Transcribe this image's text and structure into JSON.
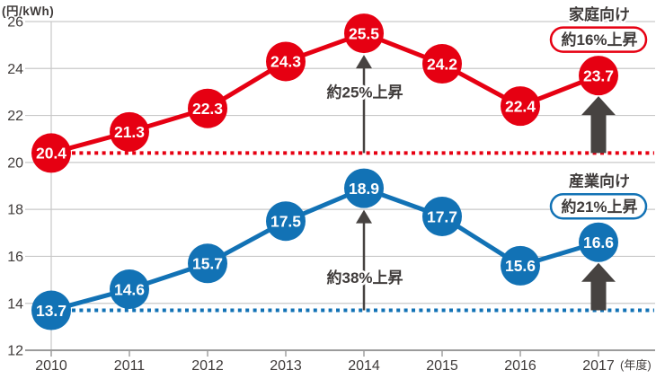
{
  "chart_data": {
    "type": "line",
    "title": "",
    "y_axis_title": "(円/kWh)",
    "x_axis_suffix": "(年度)",
    "x": [
      2010,
      2011,
      2012,
      2013,
      2014,
      2015,
      2016,
      2017
    ],
    "ylim": [
      12,
      26
    ],
    "yticks": [
      12,
      14,
      16,
      18,
      20,
      22,
      24,
      26
    ],
    "grid": true,
    "legend_position": "right-inline",
    "series": [
      {
        "name": "家庭向け",
        "color": "#e60012",
        "values": [
          20.4,
          21.3,
          22.3,
          24.3,
          25.5,
          24.2,
          22.4,
          23.7
        ],
        "baseline": {
          "value": 20.4,
          "style": "dotted"
        },
        "rise_peak": {
          "text": "約25%上昇",
          "at_x": 2014,
          "from": 20.4,
          "to": 25.5,
          "label_at_value": 23.0
        },
        "rise_total": {
          "text": "約16%上昇",
          "at_x": 2017,
          "from": 20.4,
          "to": 23.7
        }
      },
      {
        "name": "産業向け",
        "color": "#1272b5",
        "values": [
          13.7,
          14.6,
          15.7,
          17.5,
          18.9,
          17.7,
          15.6,
          16.6
        ],
        "baseline": {
          "value": 13.7,
          "style": "dotted"
        },
        "rise_peak": {
          "text": "約38%上昇",
          "at_x": 2014,
          "from": 13.7,
          "to": 18.9,
          "label_at_value": 15.1
        },
        "rise_total": {
          "text": "約21%上昇",
          "at_x": 2017,
          "from": 13.7,
          "to": 16.6
        }
      }
    ],
    "style_colors": {
      "grid": "#c9c9c9",
      "axis": "#9b9b9b",
      "arrow": "#474341",
      "text": "#3f3b3a"
    }
  }
}
